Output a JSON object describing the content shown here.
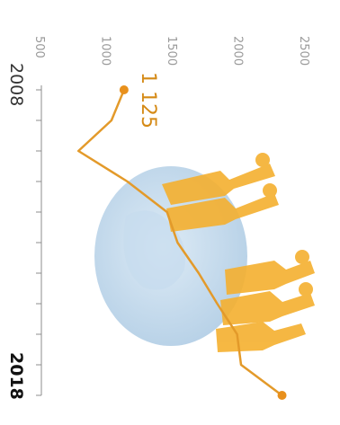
{
  "chart_data": {
    "type": "line",
    "x": [
      2008,
      2009,
      2010,
      2011,
      2012,
      2013,
      2014,
      2015,
      2016,
      2017,
      2018
    ],
    "series": [
      {
        "values": [
          1125,
          1030,
          780,
          1150,
          1450,
          1530,
          1690,
          1830,
          1980,
          2010,
          2320
        ]
      }
    ],
    "first_value_label": "1 125",
    "y_ticks": [
      500,
      1000,
      1500,
      2000,
      2500
    ],
    "y_tick_labels": [
      "500",
      "1000",
      "1500",
      "2000",
      "2500"
    ],
    "ylim": [
      500,
      2500
    ],
    "xlim": [
      2008,
      2018
    ],
    "x_tick_labels": [
      "2008",
      "2018"
    ],
    "grid": false,
    "colors": {
      "line": "#e39a2a",
      "marker": "#e8901c",
      "axis": "#8c8c8c",
      "globe": "#a9c8e2",
      "figures": "#f5b02f"
    }
  }
}
